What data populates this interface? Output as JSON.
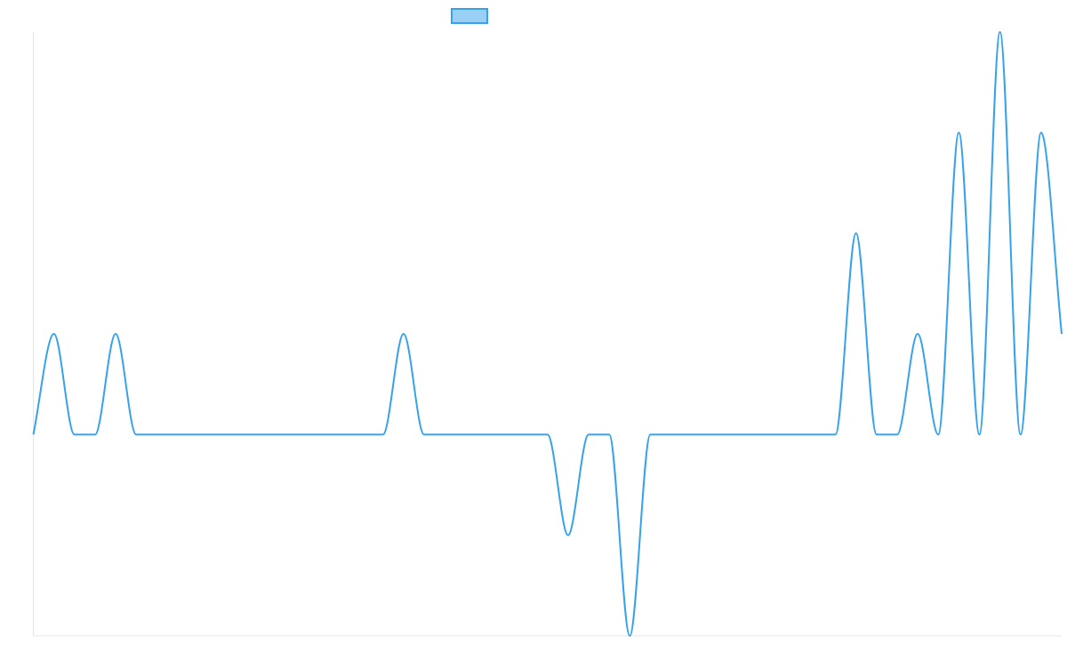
{
  "chart_data": {
    "type": "line",
    "title": "",
    "xlabel": "",
    "ylabel": "",
    "legend": {
      "placement": "top-center",
      "entries": [
        {
          "name": "",
          "color": "#36a2eb",
          "fill": "#9ad0f5"
        }
      ]
    },
    "grid": false,
    "xlim": [
      0,
      50
    ],
    "ylim": [
      -2,
      4
    ],
    "x": [
      0,
      1,
      2,
      3,
      4,
      5,
      6,
      7,
      8,
      9,
      10,
      11,
      12,
      13,
      14,
      15,
      16,
      17,
      18,
      19,
      20,
      21,
      22,
      23,
      24,
      25,
      26,
      27,
      28,
      29,
      30,
      31,
      32,
      33,
      34,
      35,
      36,
      37,
      38,
      39,
      40,
      41,
      42,
      43,
      44,
      45,
      46,
      47,
      48,
      49,
      50
    ],
    "series": [
      {
        "name": "",
        "color": "#36a2eb",
        "values": [
          0,
          1,
          0,
          0,
          1,
          0,
          0,
          0,
          0,
          0,
          0,
          0,
          0,
          0,
          0,
          0,
          0,
          0,
          1,
          0,
          0,
          0,
          0,
          0,
          0,
          0,
          -1,
          0,
          0,
          -2,
          0,
          0,
          0,
          0,
          0,
          0,
          0,
          0,
          0,
          0,
          2,
          0,
          0,
          1,
          0,
          3,
          0,
          4,
          0,
          3,
          1
        ]
      }
    ]
  }
}
